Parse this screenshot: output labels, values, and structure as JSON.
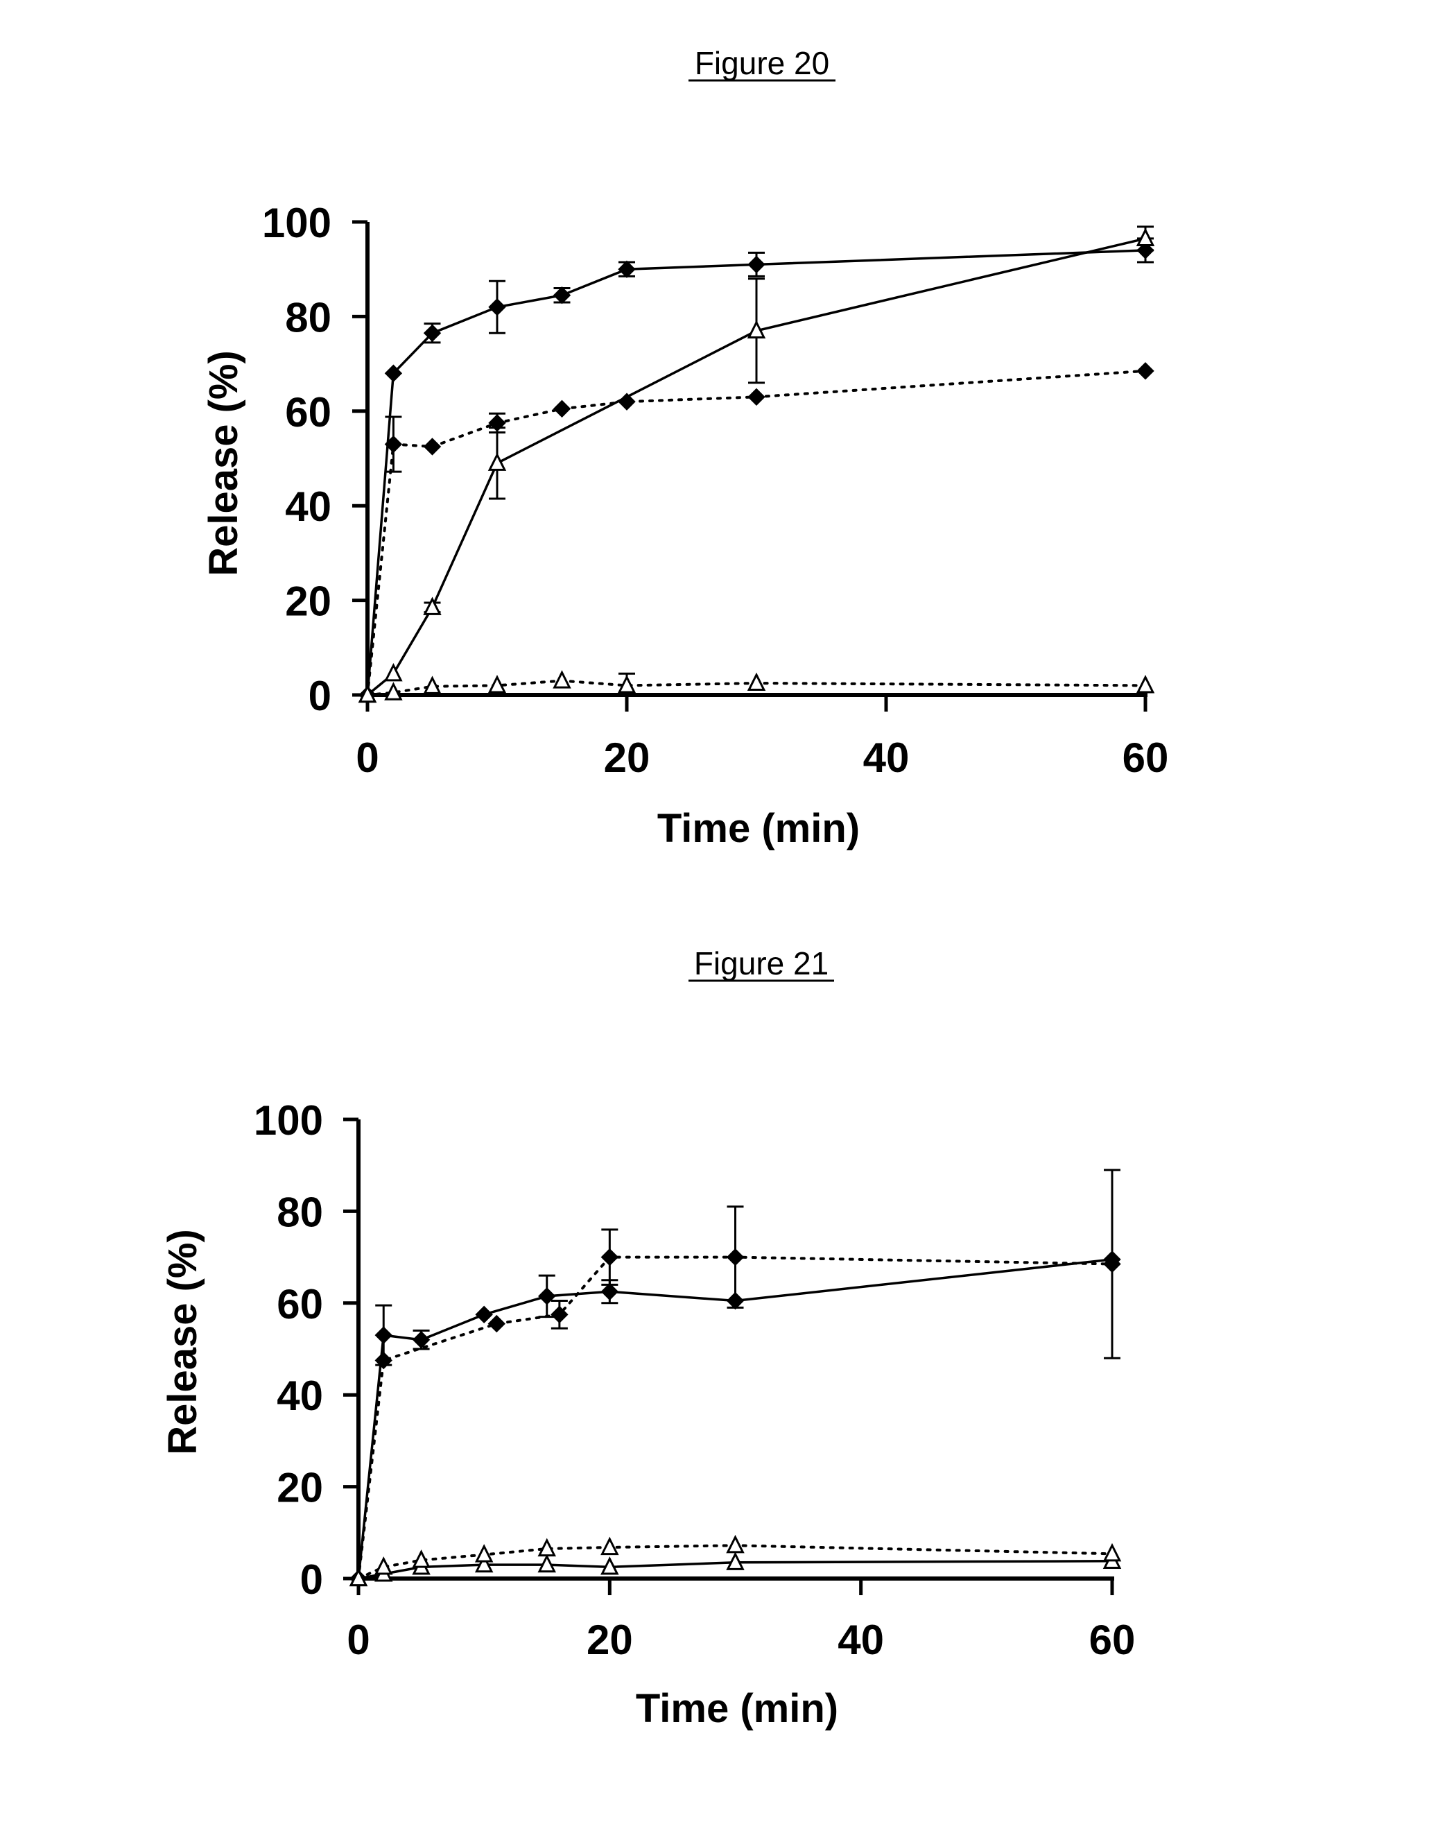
{
  "chart_data": [
    {
      "type": "line",
      "title": "Figure 20",
      "xlabel": "Time (min)",
      "ylabel": "Release (%)",
      "xlim": [
        0,
        60
      ],
      "ylim": [
        0,
        100
      ],
      "xticks": [
        "0",
        "20",
        "40",
        "60"
      ],
      "yticks": [
        "0",
        "20",
        "40",
        "60",
        "80",
        "100"
      ],
      "grid": false,
      "legend": "none",
      "series": [
        {
          "name": "solid-diamond",
          "marker": "filled-diamond",
          "line": "solid",
          "x": [
            0,
            2,
            5,
            10,
            15,
            20,
            30,
            60
          ],
          "y": [
            0,
            68,
            76.5,
            82,
            84.5,
            90,
            91,
            94
          ],
          "err": [
            0,
            0,
            2,
            5.5,
            1.5,
            1.5,
            2.5,
            2.5
          ]
        },
        {
          "name": "dotted-diamond",
          "marker": "filled-diamond",
          "line": "dotted",
          "x": [
            0,
            2,
            5,
            10,
            15,
            20,
            30,
            60
          ],
          "y": [
            0,
            53,
            52.5,
            57.5,
            60.5,
            62,
            63,
            68.5
          ],
          "err": [
            0,
            5.8,
            0,
            2,
            0,
            0,
            0,
            0
          ]
        },
        {
          "name": "solid-triangle",
          "marker": "open-triangle",
          "line": "solid",
          "x": [
            0,
            2,
            5,
            10,
            30,
            60
          ],
          "y": [
            0,
            4.5,
            18.5,
            49,
            77,
            96.5
          ],
          "err": [
            0,
            0,
            1,
            7.5,
            11,
            2.5
          ]
        },
        {
          "name": "dotted-triangle",
          "marker": "open-triangle",
          "line": "dotted",
          "x": [
            0,
            2,
            5,
            10,
            15,
            20,
            30,
            60
          ],
          "y": [
            0,
            0.5,
            1.8,
            2,
            3,
            2,
            2.5,
            2
          ],
          "err": [
            0,
            0,
            0,
            0,
            0,
            2.5,
            0,
            0
          ]
        }
      ]
    },
    {
      "type": "line",
      "title": "Figure 21",
      "xlabel": "Time (min)",
      "ylabel": "Release (%)",
      "xlim": [
        0,
        60
      ],
      "ylim": [
        0,
        100
      ],
      "xticks": [
        "0",
        "20",
        "40",
        "60"
      ],
      "yticks": [
        "0",
        "20",
        "40",
        "60",
        "80",
        "100"
      ],
      "grid": false,
      "legend": "none",
      "series": [
        {
          "name": "solid-diamond",
          "marker": "filled-diamond",
          "line": "solid",
          "x": [
            0,
            2,
            5,
            10,
            15,
            20,
            30,
            60
          ],
          "y": [
            0,
            53,
            52,
            57.5,
            61.5,
            62.5,
            60.5,
            69.5
          ],
          "err": [
            0,
            6.5,
            2,
            0,
            4.5,
            2.5,
            0,
            0
          ]
        },
        {
          "name": "dotted-diamond",
          "marker": "filled-diamond",
          "line": "dotted",
          "x": [
            0,
            2,
            11,
            16,
            20,
            30,
            60
          ],
          "y": [
            0,
            47.5,
            55.5,
            57.5,
            70,
            70,
            68.5
          ],
          "err": [
            0,
            0,
            0,
            3,
            6,
            11,
            20.5
          ]
        },
        {
          "name": "solid-triangle",
          "marker": "open-triangle",
          "line": "solid",
          "x": [
            0,
            2,
            5,
            10,
            15,
            20,
            30,
            60
          ],
          "y": [
            0,
            1,
            2.5,
            3,
            3,
            2.5,
            3.5,
            3.8
          ],
          "err": [
            0,
            0,
            0,
            0,
            0,
            0,
            0,
            0
          ]
        },
        {
          "name": "dotted-triangle",
          "marker": "open-triangle",
          "line": "dotted",
          "x": [
            0,
            2,
            5,
            10,
            15,
            20,
            30,
            60
          ],
          "y": [
            0,
            2.5,
            4,
            5.2,
            6.5,
            6.8,
            7.2,
            5.4
          ],
          "err": [
            0,
            0,
            0,
            0,
            0,
            0,
            0,
            0
          ]
        }
      ]
    }
  ]
}
